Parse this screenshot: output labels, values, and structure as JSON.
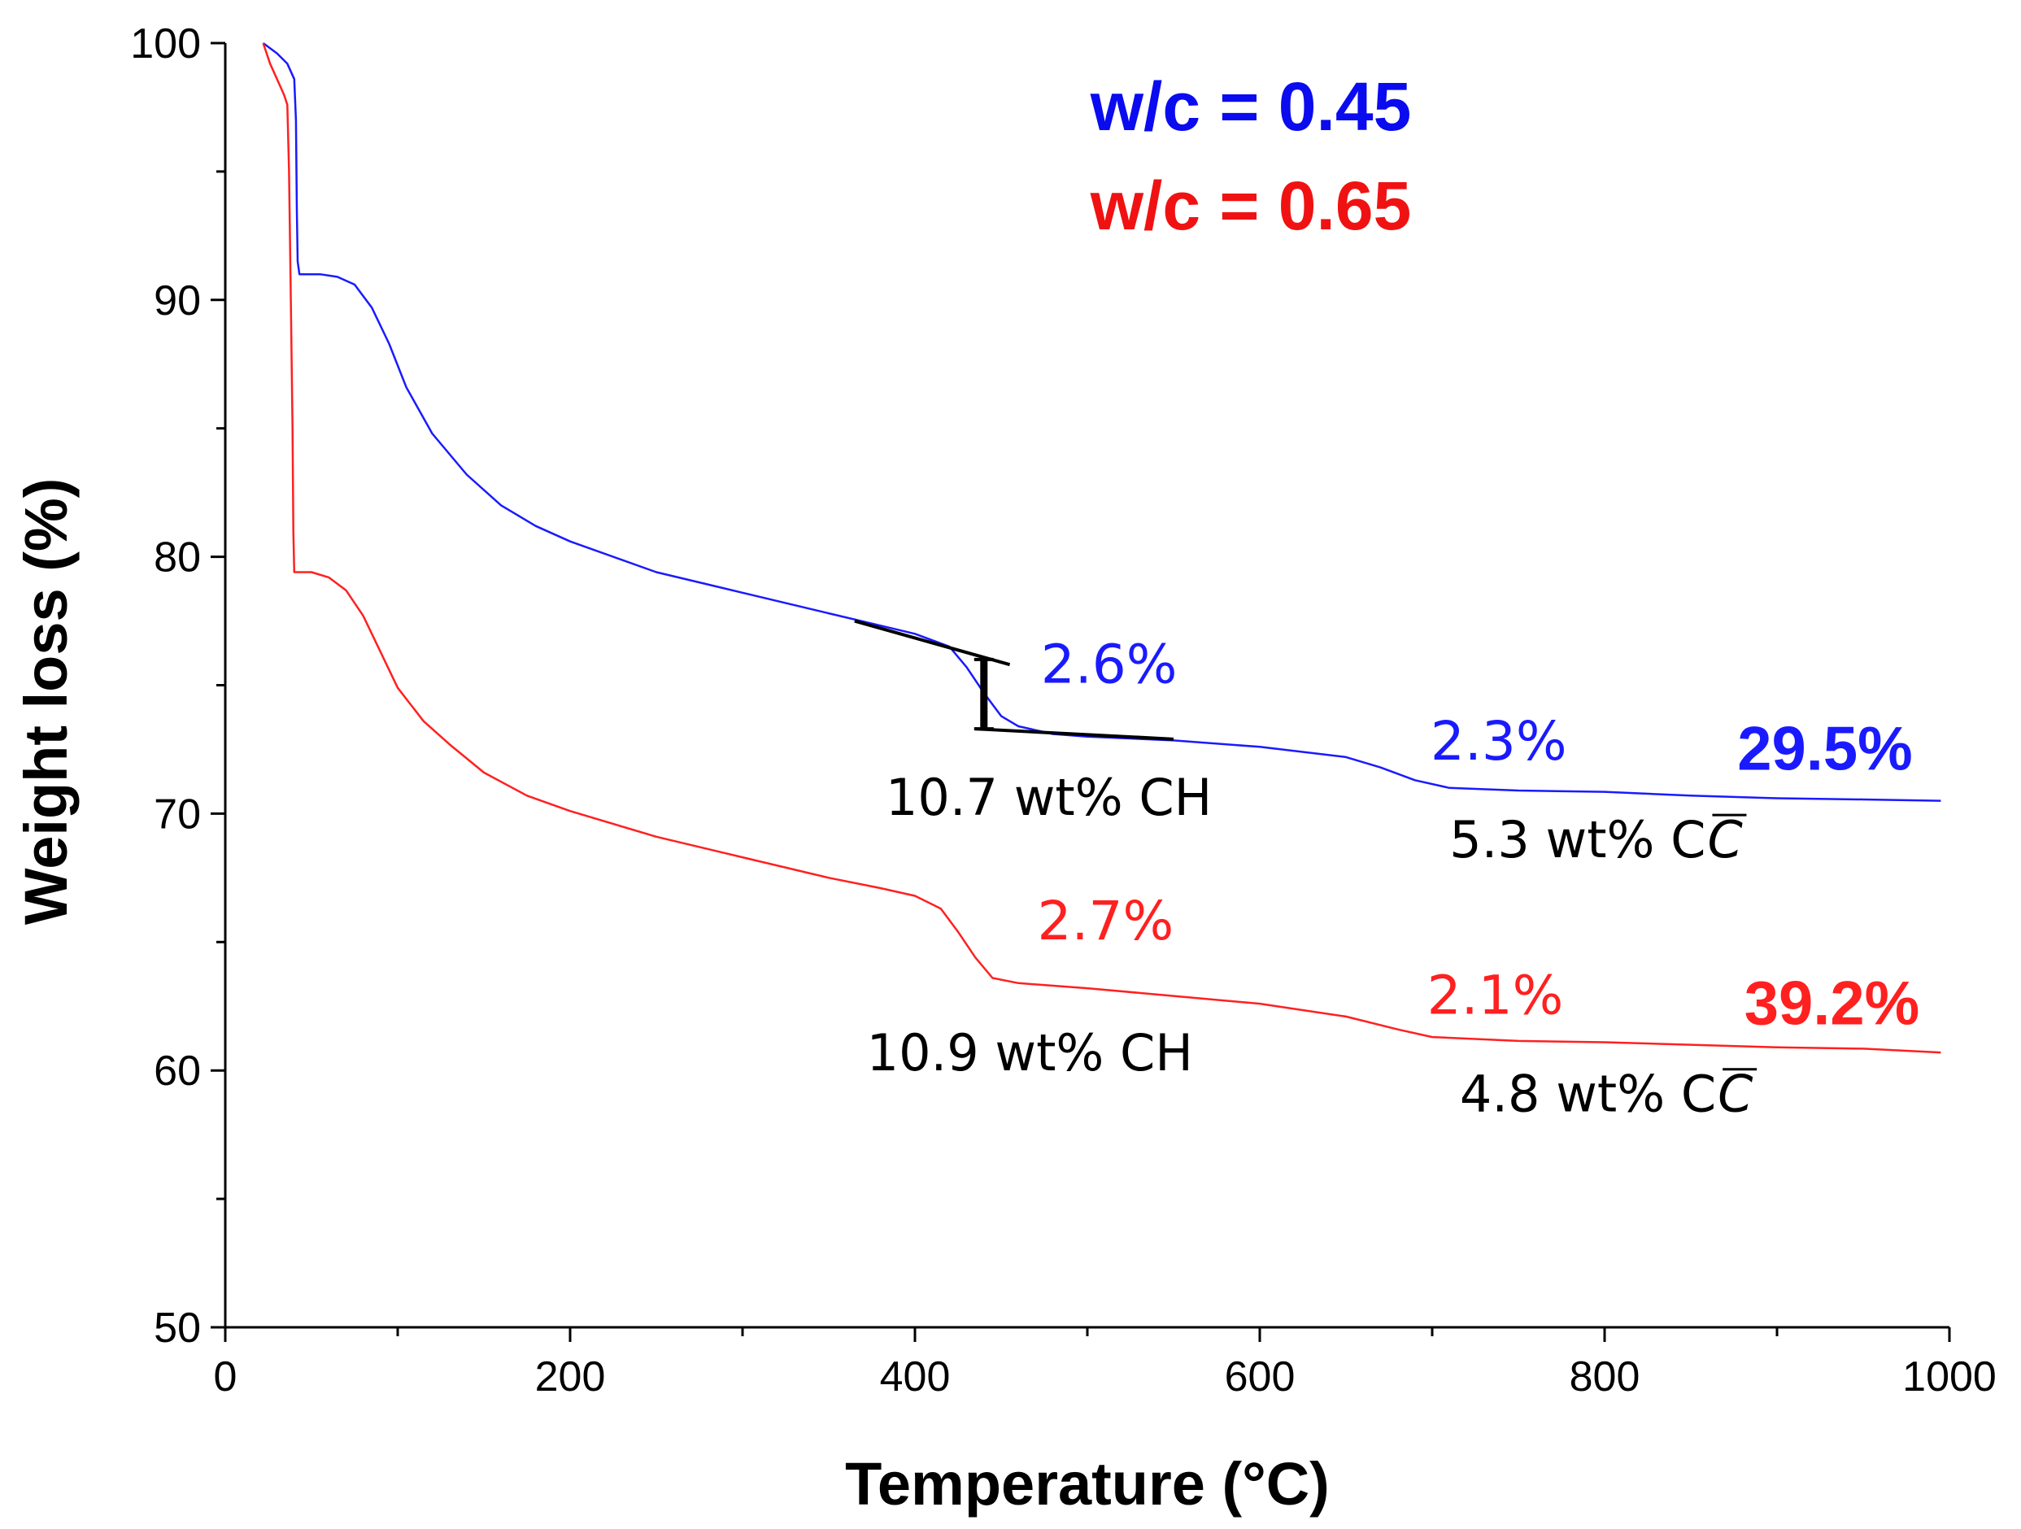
{
  "chart_data": {
    "type": "line",
    "title": "",
    "xlabel": "Temperature (°C)",
    "ylabel": "Weight loss (%)",
    "xlim": [
      0,
      1000
    ],
    "ylim": [
      50,
      100
    ],
    "x_ticks": [
      "0",
      "200",
      "400",
      "600",
      "800",
      "1000"
    ],
    "y_ticks": [
      "50",
      "60",
      "70",
      "80",
      "90",
      "100"
    ],
    "grid": false,
    "legend": [
      {
        "label": "w/c = 0.45",
        "color": "#0b0bef"
      },
      {
        "label": "w/c = 0.65",
        "color": "#f01212"
      }
    ],
    "series": [
      {
        "name": "w/c = 0.45",
        "color": "#1a1aff",
        "points": [
          [
            22,
            100
          ],
          [
            30,
            99.6
          ],
          [
            36,
            99.2
          ],
          [
            40,
            98.6
          ],
          [
            41,
            97
          ],
          [
            41.5,
            93.5
          ],
          [
            42,
            91.5
          ],
          [
            43,
            91.0
          ],
          [
            55,
            91.0
          ],
          [
            65,
            90.9
          ],
          [
            75,
            90.6
          ],
          [
            85,
            89.7
          ],
          [
            95,
            88.3
          ],
          [
            105,
            86.6
          ],
          [
            120,
            84.8
          ],
          [
            140,
            83.2
          ],
          [
            160,
            82.0
          ],
          [
            180,
            81.2
          ],
          [
            200,
            80.6
          ],
          [
            250,
            79.4
          ],
          [
            300,
            78.6
          ],
          [
            350,
            77.8
          ],
          [
            400,
            77.0
          ],
          [
            420,
            76.5
          ],
          [
            430,
            75.7
          ],
          [
            440,
            74.7
          ],
          [
            450,
            73.8
          ],
          [
            460,
            73.4
          ],
          [
            480,
            73.1
          ],
          [
            500,
            73.0
          ],
          [
            550,
            72.85
          ],
          [
            600,
            72.6
          ],
          [
            650,
            72.2
          ],
          [
            670,
            71.8
          ],
          [
            690,
            71.3
          ],
          [
            710,
            71.0
          ],
          [
            750,
            70.9
          ],
          [
            800,
            70.85
          ],
          [
            850,
            70.7
          ],
          [
            900,
            70.6
          ],
          [
            950,
            70.55
          ],
          [
            995,
            70.5
          ]
        ]
      },
      {
        "name": "w/c = 0.65",
        "color": "#ff2020",
        "points": [
          [
            22,
            100
          ],
          [
            26,
            99.2
          ],
          [
            30,
            98.6
          ],
          [
            34,
            98.0
          ],
          [
            36,
            97.6
          ],
          [
            37,
            95
          ],
          [
            38,
            90
          ],
          [
            39,
            85
          ],
          [
            39.5,
            81
          ],
          [
            40,
            79.4
          ],
          [
            50,
            79.4
          ],
          [
            60,
            79.2
          ],
          [
            70,
            78.7
          ],
          [
            80,
            77.7
          ],
          [
            90,
            76.3
          ],
          [
            100,
            74.9
          ],
          [
            115,
            73.6
          ],
          [
            130,
            72.7
          ],
          [
            150,
            71.6
          ],
          [
            175,
            70.7
          ],
          [
            200,
            70.1
          ],
          [
            250,
            69.1
          ],
          [
            300,
            68.3
          ],
          [
            350,
            67.5
          ],
          [
            380,
            67.1
          ],
          [
            400,
            66.8
          ],
          [
            415,
            66.3
          ],
          [
            425,
            65.4
          ],
          [
            435,
            64.4
          ],
          [
            445,
            63.6
          ],
          [
            460,
            63.4
          ],
          [
            500,
            63.2
          ],
          [
            550,
            62.9
          ],
          [
            600,
            62.6
          ],
          [
            650,
            62.1
          ],
          [
            680,
            61.6
          ],
          [
            700,
            61.3
          ],
          [
            750,
            61.15
          ],
          [
            800,
            61.1
          ],
          [
            850,
            61.0
          ],
          [
            900,
            60.9
          ],
          [
            950,
            60.85
          ],
          [
            995,
            60.7
          ]
        ]
      }
    ],
    "annotations": [
      {
        "text": "2.6%",
        "color": "#1a1aff",
        "style": "pct",
        "at": [
          473,
          75.1
        ]
      },
      {
        "text": "10.7 wt% CH",
        "color": "#000000",
        "style": "black",
        "at": [
          383,
          69.95
        ]
      },
      {
        "text": "2.3%",
        "color": "#1a1aff",
        "style": "pct",
        "at": [
          699,
          72.1
        ]
      },
      {
        "text": "5.3 wt% C",
        "color": "#000000",
        "style": "black",
        "at": [
          710,
          68.3
        ],
        "overbar": "C"
      },
      {
        "text": "29.5%",
        "color": "#1a1aff",
        "style": "total",
        "at": [
          877,
          71.7
        ]
      },
      {
        "text": "2.7%",
        "color": "#ff2020",
        "style": "pct",
        "at": [
          471,
          65.1
        ]
      },
      {
        "text": "10.9 wt% CH",
        "color": "#000000",
        "style": "black",
        "at": [
          372,
          60.0
        ]
      },
      {
        "text": "2.1%",
        "color": "#ff2020",
        "style": "pct",
        "at": [
          697,
          62.2
        ]
      },
      {
        "text": "4.8 wt% C",
        "color": "#000000",
        "style": "black",
        "at": [
          716,
          58.4
        ],
        "overbar": "C"
      },
      {
        "text": "39.2%",
        "color": "#ff2020",
        "style": "total",
        "at": [
          881,
          61.8
        ]
      }
    ],
    "tangent_lines": [
      {
        "from": [
          365,
          77.5
        ],
        "to": [
          455,
          75.8
        ]
      },
      {
        "from": [
          435,
          73.3
        ],
        "to": [
          550,
          72.9
        ]
      }
    ],
    "step_marker": {
      "x": 440,
      "y_top": 76.0,
      "y_bottom": 73.3
    }
  }
}
